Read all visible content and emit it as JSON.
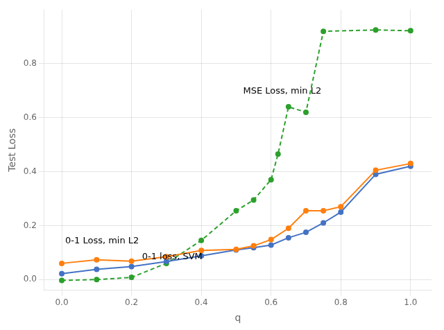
{
  "chart_data": {
    "type": "line",
    "x_label": "q",
    "y_label": "Test Loss",
    "series": [
      {
        "name": "0-1 Loss, min L2",
        "color": "#ff7f0e",
        "line_style": "solid",
        "marker": "circle",
        "x": [
          0.0,
          0.1,
          0.2,
          0.3,
          0.4,
          0.5,
          0.55,
          0.6,
          0.65,
          0.7,
          0.75,
          0.8,
          0.9,
          1.0
        ],
        "values": [
          0.06,
          0.073,
          0.068,
          0.085,
          0.108,
          0.112,
          0.125,
          0.148,
          0.19,
          0.255,
          0.255,
          0.27,
          0.405,
          0.43
        ]
      },
      {
        "name": "0-1 loss, SVM",
        "color": "#4472c4",
        "line_style": "solid",
        "marker": "circle",
        "x": [
          0.0,
          0.1,
          0.2,
          0.3,
          0.4,
          0.5,
          0.55,
          0.6,
          0.65,
          0.7,
          0.75,
          0.8,
          0.9,
          1.0
        ],
        "values": [
          0.022,
          0.038,
          0.048,
          0.067,
          0.088,
          0.11,
          0.118,
          0.128,
          0.155,
          0.175,
          0.21,
          0.25,
          0.39,
          0.42
        ]
      },
      {
        "name": "MSE Loss, min L2",
        "color": "#2ca02c",
        "line_style": "dashed",
        "marker": "circle",
        "x": [
          0.0,
          0.1,
          0.2,
          0.3,
          0.4,
          0.5,
          0.55,
          0.6,
          0.62,
          0.65,
          0.7,
          0.75,
          0.9,
          1.0
        ],
        "values": [
          -0.003,
          0.0,
          0.008,
          0.06,
          0.145,
          0.255,
          0.295,
          0.37,
          0.465,
          0.64,
          0.62,
          0.92,
          0.925,
          0.922
        ]
      }
    ],
    "xlim": [
      -0.05,
      1.06
    ],
    "ylim": [
      -0.04,
      1.0
    ],
    "xticks": [
      {
        "value": 0,
        "label": "0.0"
      },
      0.2,
      0.4,
      0.6,
      0.8,
      {
        "value": 1,
        "label": "1.0"
      }
    ],
    "yticks": [
      {
        "value": 0,
        "label": "0.0"
      },
      0.2,
      0.4,
      0.6,
      0.8
    ],
    "grid": true,
    "annotations": [
      {
        "text": "MSE Loss, min L2",
        "x": 0.52,
        "y": 0.69
      },
      {
        "text": "0-1 Loss, min L2",
        "x": 0.01,
        "y": 0.135
      },
      {
        "text": "0-1 loss, SVM",
        "x": 0.23,
        "y": 0.075
      }
    ]
  }
}
